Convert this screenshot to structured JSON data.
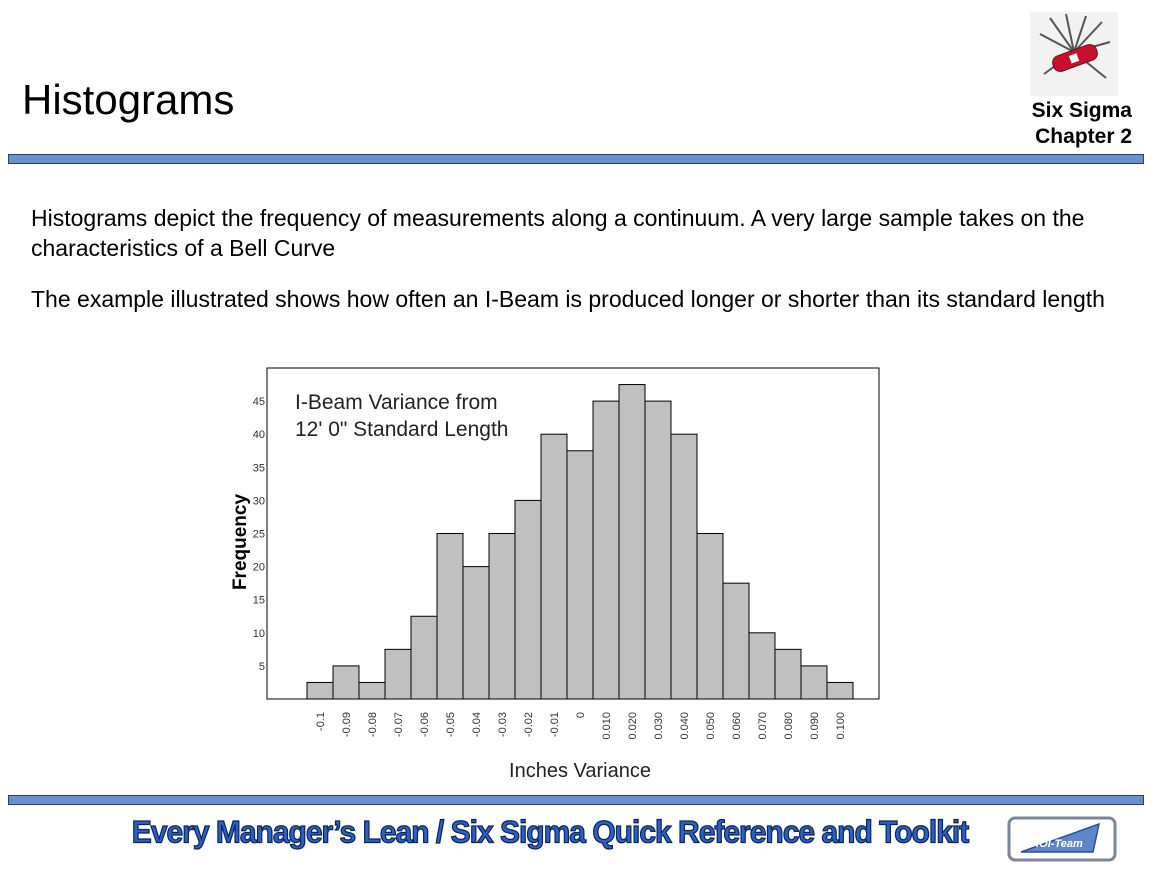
{
  "header": {
    "title": "Histograms",
    "chapter_line1": "Six Sigma",
    "chapter_line2": "Chapter 2",
    "logo_icon": "swiss-army-knife-icon"
  },
  "body": {
    "paragraph1": "Histograms depict the frequency of measurements along a continuum. A very large sample takes on the characteristics of a Bell Curve",
    "paragraph2": "The example illustrated shows how often an I-Beam is produced longer or shorter than its standard length"
  },
  "footer": {
    "title": "Every Manager’s Lean / Six Sigma Quick Reference and Toolkit",
    "logo_text": "ROI-Team"
  },
  "colors": {
    "rule": "#6b8fd0",
    "bar_fill": "#c0c0c0",
    "footer_text": "#2d5fc4"
  },
  "chart_data": {
    "type": "bar",
    "annotation_line1": "I-Beam Variance from",
    "annotation_line2": "12' 0\" Standard Length",
    "xlabel": "Inches Variance",
    "ylabel": "Frequency",
    "categories": [
      "-0.1",
      "-0.09",
      "-0.08",
      "-0.07",
      "-0.06",
      "-0.05",
      "-0.04",
      "-0.03",
      "-0.02",
      "-0.01",
      "0",
      "0.010",
      "0.020",
      "0.030",
      "0.040",
      "0.050",
      "0.060",
      "0.070",
      "0.080",
      "0.090",
      "0.100"
    ],
    "values": [
      2.5,
      5,
      2.5,
      7.5,
      12.5,
      25,
      20,
      25,
      30,
      40,
      37.5,
      45,
      47.5,
      45,
      40,
      25,
      17.5,
      10,
      7.5,
      5,
      2.5
    ],
    "yticks": [
      5,
      10,
      15,
      20,
      25,
      30,
      35,
      40,
      45
    ],
    "ylim": [
      0,
      50
    ],
    "grid": false
  }
}
